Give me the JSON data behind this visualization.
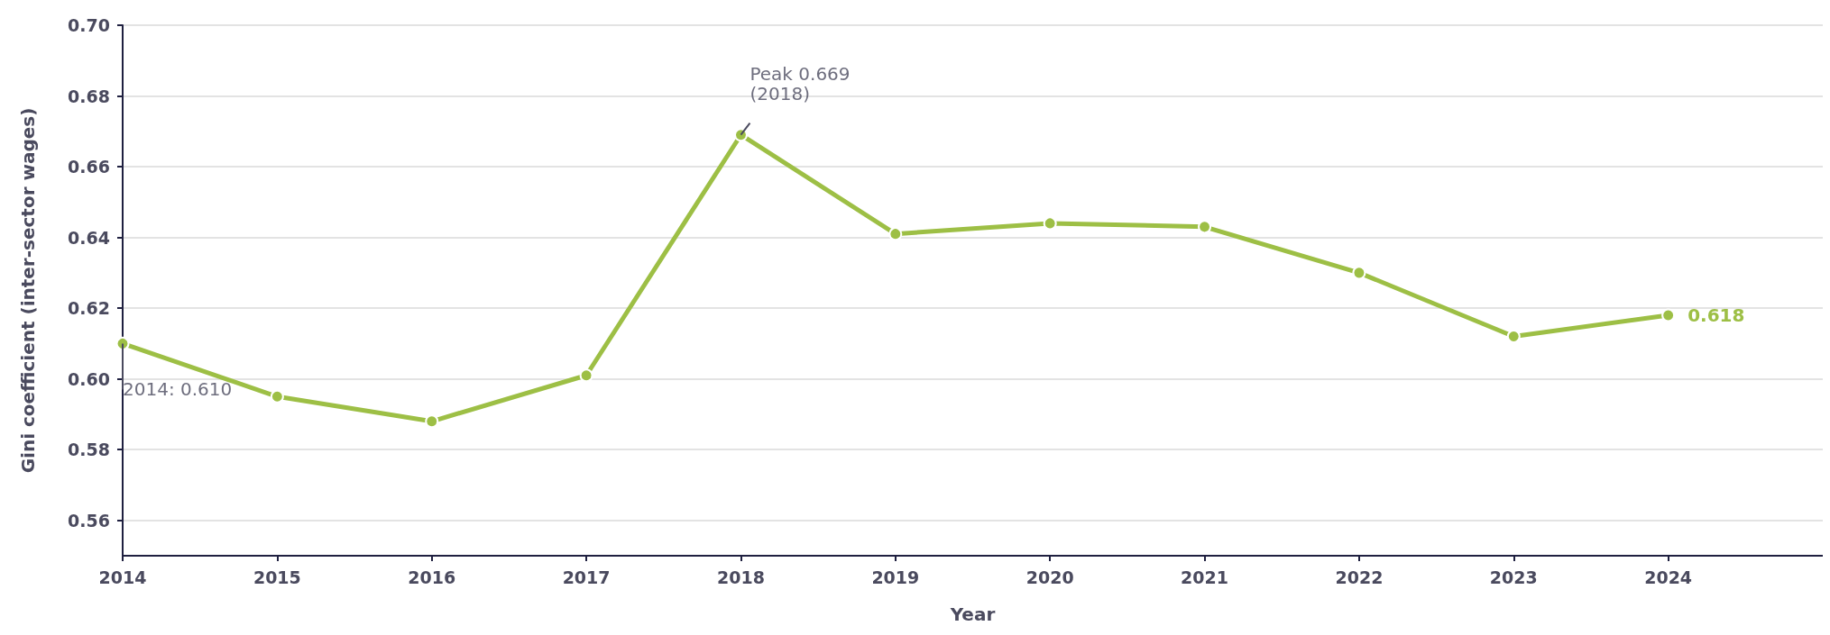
{
  "chart_data": {
    "type": "line",
    "xlabel": "Year",
    "ylabel": "Gini coefficient (inter-sector wages)",
    "x": [
      2014,
      2015,
      2016,
      2017,
      2018,
      2019,
      2020,
      2021,
      2022,
      2023,
      2024
    ],
    "series": [
      {
        "color": "#9dbf45",
        "values": [
          0.61,
          0.595,
          0.588,
          0.601,
          0.669,
          0.641,
          0.644,
          0.643,
          0.63,
          0.612,
          0.618
        ],
        "value_labels": [
          null,
          null,
          null,
          null,
          null,
          null,
          null,
          null,
          null,
          null,
          "0.618"
        ]
      }
    ],
    "xlim": [
      2014,
      2025
    ],
    "xticks": [
      2014,
      2015,
      2016,
      2017,
      2018,
      2019,
      2020,
      2021,
      2022,
      2023,
      2024
    ],
    "ylim": [
      0.55,
      0.7
    ],
    "yticks": [
      0.56,
      0.58,
      {
        "value": 0.6,
        "label": "0.60"
      },
      0.62,
      0.64,
      0.66,
      0.68,
      {
        "value": 0.7,
        "label": "0.70"
      }
    ],
    "annotations": [
      {
        "text": "Peak 0.669\n(2018)",
        "x": 2018,
        "y": 0.669
      },
      {
        "text": "2014: 0.610",
        "x": 2014,
        "y": 0.61
      }
    ],
    "grid": "y",
    "marker": "circle",
    "line_style": "solid"
  }
}
